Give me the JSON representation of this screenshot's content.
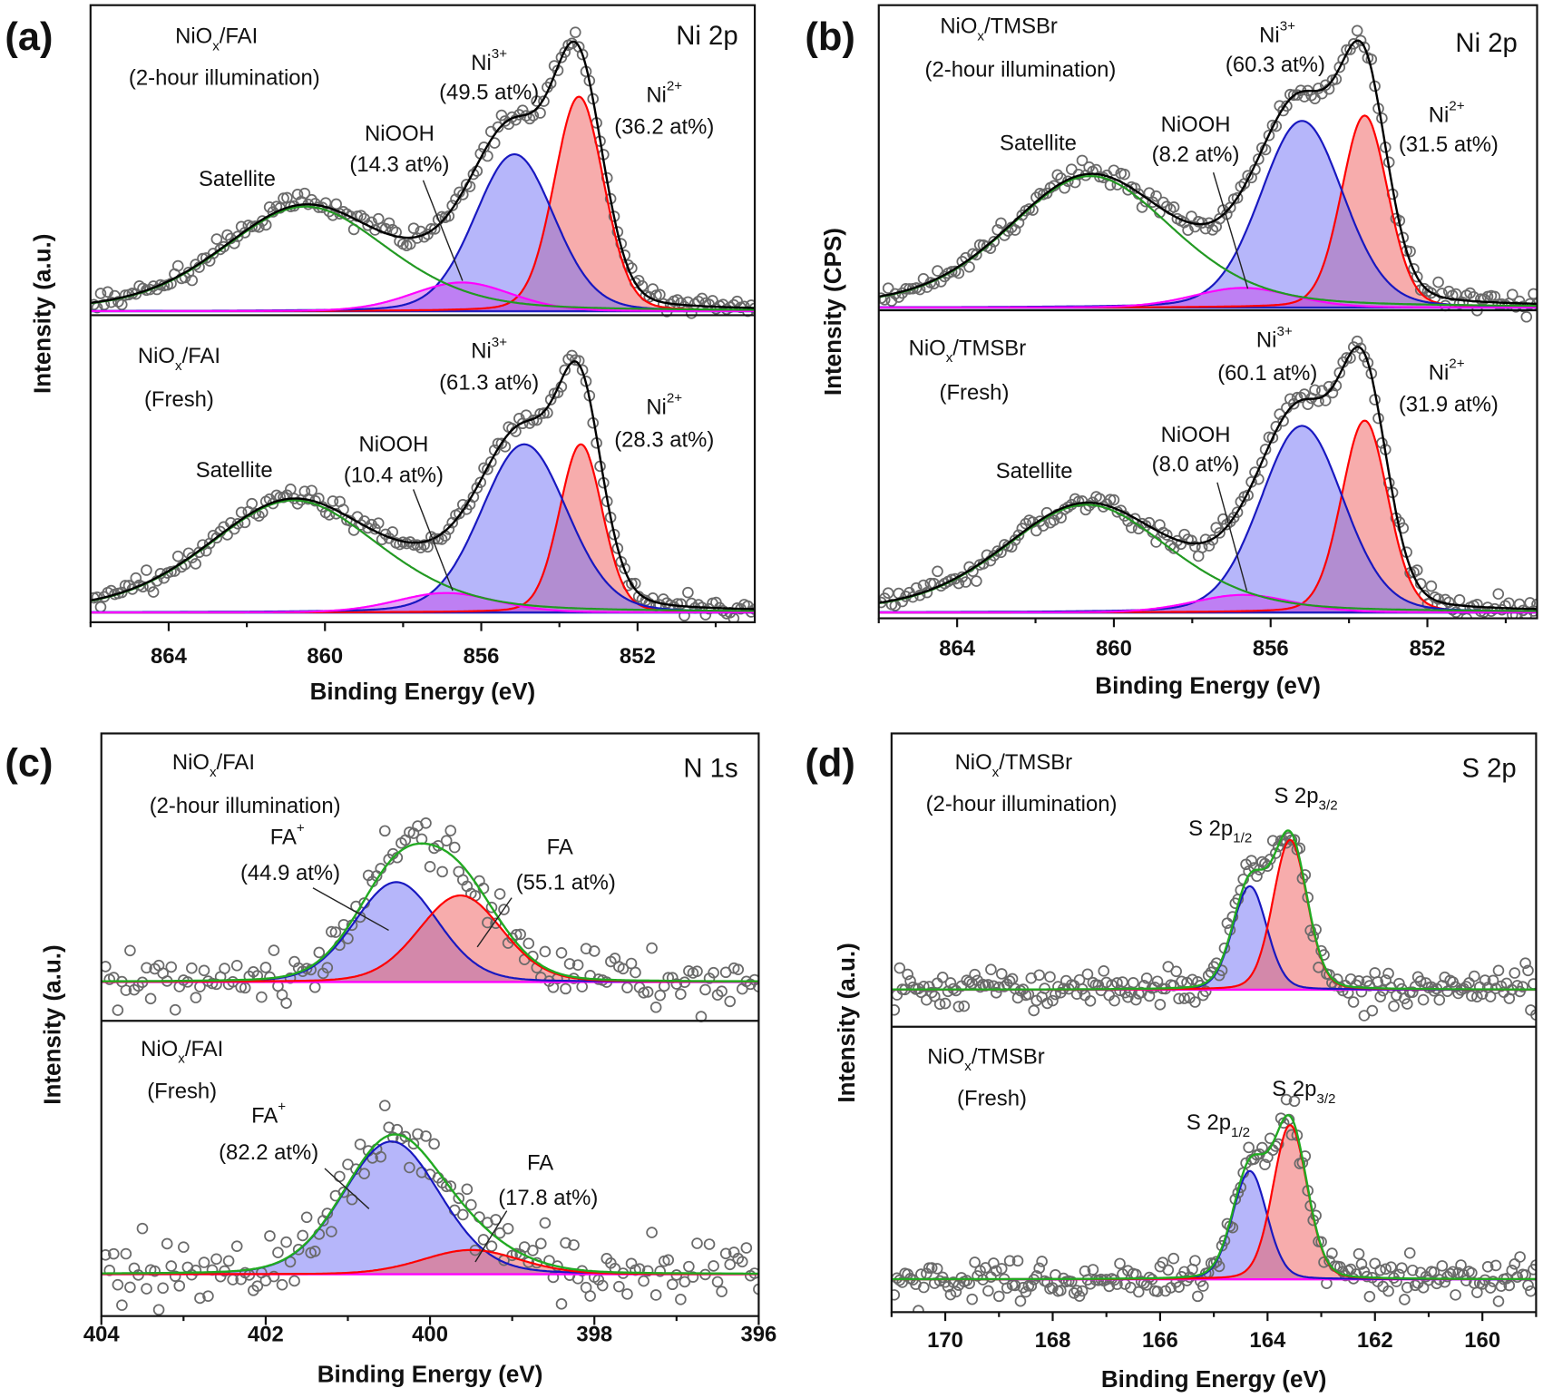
{
  "chart_data": [
    {
      "type": "line",
      "panel": "(a)",
      "element": "Ni 2p",
      "xlabel": "Binding Energy (eV)",
      "ylabel": "Intensity (a.u.)",
      "xlim": [
        866.0,
        849.0
      ],
      "xticks": [
        "864",
        "860",
        "856",
        "852"
      ],
      "envelope_color": "#000000",
      "subplots": [
        {
          "sample": [
            {
              "t": "NiO"
            },
            {
              "t": "x",
              "s": "sub"
            },
            {
              "t": "/FAI"
            }
          ],
          "condition": "(2-hour illumination)",
          "ylim": [
            -0.015,
            1.17
          ],
          "components": [
            {
              "name": [
                {
                  "t": "Ni"
                },
                {
                  "t": "2+",
                  "s": "sup"
                }
              ],
              "at_percent": "(36.2 at%)",
              "center": 853.5,
              "fwhm": 1.5,
              "height": 0.82,
              "color": "#ff0000",
              "fill": "rgba(240,90,90,0.5)"
            },
            {
              "name": [
                {
                  "t": "Ni"
                },
                {
                  "t": "3+",
                  "s": "sup"
                }
              ],
              "at_percent": "(49.5 at%)",
              "center": 855.15,
              "fwhm": 2.4,
              "height": 0.6,
              "color": "#1818c0",
              "fill": "rgba(110,110,245,0.5)"
            },
            {
              "name": [
                {
                  "t": "NiOOH"
                }
              ],
              "at_percent": "(14.3 at%)",
              "center": 856.5,
              "fwhm": 3.0,
              "height": 0.11,
              "color": "#ff00ff",
              "fill": "rgba(200,60,235,0.45)"
            },
            {
              "name": [
                {
                  "t": "Satellite"
                }
              ],
              "center": 860.5,
              "fwhm": 5.0,
              "height": 0.4,
              "color": "#229922",
              "fill": "none"
            }
          ]
        },
        {
          "sample": [
            {
              "t": "NiO"
            },
            {
              "t": "x",
              "s": "sub"
            },
            {
              "t": "/FAI"
            }
          ],
          "condition": "(Fresh)",
          "ylim": [
            -0.04,
            1.22
          ],
          "components": [
            {
              "name": [
                {
                  "t": "Ni"
                },
                {
                  "t": "2+",
                  "s": "sup"
                }
              ],
              "at_percent": "(28.3 at%)",
              "center": 853.45,
              "fwhm": 1.3,
              "height": 0.69,
              "color": "#ff0000",
              "fill": "rgba(240,90,90,0.5)"
            },
            {
              "name": [
                {
                  "t": "Ni"
                },
                {
                  "t": "3+",
                  "s": "sup"
                }
              ],
              "at_percent": "(61.3 at%)",
              "center": 854.9,
              "fwhm": 2.6,
              "height": 0.69,
              "color": "#1818c0",
              "fill": "rgba(110,110,245,0.5)"
            },
            {
              "name": [
                {
                  "t": "NiOOH"
                }
              ],
              "at_percent": "(10.4 at%)",
              "center": 856.9,
              "fwhm": 3.0,
              "height": 0.08,
              "color": "#ff00ff",
              "fill": "rgba(200,60,235,0.45)"
            },
            {
              "name": [
                {
                  "t": "Satellite"
                }
              ],
              "center": 860.8,
              "fwhm": 5.2,
              "height": 0.46,
              "color": "#229922",
              "fill": "none"
            }
          ]
        }
      ]
    },
    {
      "type": "line",
      "panel": "(b)",
      "element": "Ni 2p",
      "xlabel": "Binding Energy (eV)",
      "ylabel": "Intensity (CPS)",
      "xlim": [
        866.0,
        849.2
      ],
      "xticks": [
        "864",
        "860",
        "856",
        "852"
      ],
      "envelope_color": "#000000",
      "subplots": [
        {
          "sample": [
            {
              "t": "NiO"
            },
            {
              "t": "x",
              "s": "sub"
            },
            {
              "t": "/TMSBr"
            }
          ],
          "condition": "(2-hour illumination)",
          "ylim": [
            -0.01,
            1.15
          ],
          "components": [
            {
              "name": [
                {
                  "t": "Ni"
                },
                {
                  "t": "2+",
                  "s": "sup"
                }
              ],
              "at_percent": "(31.5 at%)",
              "center": 853.6,
              "fwhm": 1.4,
              "height": 0.73,
              "color": "#ff0000",
              "fill": "rgba(240,90,90,0.5)"
            },
            {
              "name": [
                {
                  "t": "Ni"
                },
                {
                  "t": "3+",
                  "s": "sup"
                }
              ],
              "at_percent": "(60.3 at%)",
              "center": 855.2,
              "fwhm": 2.5,
              "height": 0.71,
              "color": "#1818c0",
              "fill": "rgba(110,110,245,0.5)"
            },
            {
              "name": [
                {
                  "t": "NiOOH"
                }
              ],
              "at_percent": "(8.2 at%)",
              "center": 856.7,
              "fwhm": 3.0,
              "height": 0.075,
              "color": "#ff00ff",
              "fill": "rgba(200,60,235,0.45)"
            },
            {
              "name": [
                {
                  "t": "Satellite"
                }
              ],
              "center": 860.6,
              "fwhm": 5.0,
              "height": 0.5,
              "color": "#229922",
              "fill": "none"
            }
          ]
        },
        {
          "sample": [
            {
              "t": "NiO"
            },
            {
              "t": "x",
              "s": "sub"
            },
            {
              "t": "/TMSBr"
            }
          ],
          "condition": "(Fresh)",
          "ylim": [
            -0.022,
            1.15
          ],
          "components": [
            {
              "name": [
                {
                  "t": "Ni"
                },
                {
                  "t": "2+",
                  "s": "sup"
                }
              ],
              "at_percent": "(31.9 at%)",
              "center": 853.6,
              "fwhm": 1.4,
              "height": 0.73,
              "color": "#ff0000",
              "fill": "rgba(240,90,90,0.5)"
            },
            {
              "name": [
                {
                  "t": "Ni"
                },
                {
                  "t": "3+",
                  "s": "sup"
                }
              ],
              "at_percent": "(60.1 at%)",
              "center": 855.2,
              "fwhm": 2.5,
              "height": 0.71,
              "color": "#1818c0",
              "fill": "rgba(110,110,245,0.5)"
            },
            {
              "name": [
                {
                  "t": "NiOOH"
                }
              ],
              "at_percent": "(8.0 at%)",
              "center": 856.7,
              "fwhm": 3.0,
              "height": 0.067,
              "color": "#ff00ff",
              "fill": "rgba(200,60,235,0.45)"
            },
            {
              "name": [
                {
                  "t": "Satellite"
                }
              ],
              "center": 860.7,
              "fwhm": 5.0,
              "height": 0.41,
              "color": "#229922",
              "fill": "none"
            }
          ]
        }
      ]
    },
    {
      "type": "line",
      "panel": "(c)",
      "element": "N 1s",
      "xlabel": "Binding Energy (eV)",
      "ylabel": "Intensity (a.u.)",
      "xlim": [
        404,
        396
      ],
      "xticks": [
        "404",
        "402",
        "400",
        "398",
        "396"
      ],
      "envelope_color": "#22aa22",
      "baseline_color": "#ff00ff",
      "subplots": [
        {
          "sample": [
            {
              "t": "NiO"
            },
            {
              "t": "x",
              "s": "sub"
            },
            {
              "t": "/FAI"
            }
          ],
          "condition": "(2-hour illumination)",
          "ylim": [
            -0.35,
            2.24
          ],
          "components": [
            {
              "name": [
                {
                  "t": "FA"
                },
                {
                  "t": "+",
                  "s": "sup"
                }
              ],
              "at_percent": "(44.9 at%)",
              "center": 400.41,
              "fwhm": 1.2,
              "height": 0.9,
              "color": "#1818c0",
              "fill": "rgba(110,110,245,0.5)"
            },
            {
              "name": [
                {
                  "t": "FA"
                }
              ],
              "at_percent": "(55.1 at%)",
              "center": 399.63,
              "fwhm": 1.2,
              "height": 0.78,
              "color": "#ff0000",
              "fill": "rgba(240,90,90,0.5)"
            }
          ]
        },
        {
          "sample": [
            {
              "t": "NiO"
            },
            {
              "t": "x",
              "s": "sub"
            },
            {
              "t": "/FAI"
            }
          ],
          "condition": "(Fresh)",
          "ylim": [
            -0.31,
            1.88
          ],
          "components": [
            {
              "name": [
                {
                  "t": "FA"
                },
                {
                  "t": "+",
                  "s": "sup"
                }
              ],
              "at_percent": "(82.2 at%)",
              "center": 400.47,
              "fwhm": 1.4,
              "height": 0.985,
              "color": "#1818c0",
              "fill": "rgba(110,110,245,0.5)"
            },
            {
              "name": [
                {
                  "t": "FA"
                }
              ],
              "at_percent": "(17.8 at%)",
              "center": 399.5,
              "fwhm": 1.4,
              "height": 0.18,
              "color": "#ff0000",
              "fill": "rgba(240,90,90,0.5)"
            }
          ]
        }
      ]
    },
    {
      "type": "line",
      "panel": "(d)",
      "element": "S 2p",
      "xlabel": "Binding Energy (eV)",
      "ylabel": "Intensity (a.u.)",
      "xlim": [
        171,
        159
      ],
      "xticks": [
        "170",
        "168",
        "166",
        "164",
        "162",
        "160"
      ],
      "envelope_color": "#22aa22",
      "baseline_color": "#ff00ff",
      "subplots": [
        {
          "sample": [
            {
              "t": "NiO"
            },
            {
              "t": "x",
              "s": "sub"
            },
            {
              "t": "/TMSBr"
            }
          ],
          "condition": "(2-hour illumination)",
          "ylim": [
            -0.24,
            1.66
          ],
          "components": [
            {
              "name": [
                {
                  "t": "S 2p"
                },
                {
                  "t": "1/2",
                  "s": "sub"
                }
              ],
              "center": 164.33,
              "fwhm": 0.75,
              "height": 0.67,
              "color": "#1818c0",
              "fill": "rgba(110,110,245,0.5)"
            },
            {
              "name": [
                {
                  "t": "S 2p"
                },
                {
                  "t": "3/2",
                  "s": "sub"
                }
              ],
              "center": 163.58,
              "fwhm": 0.75,
              "height": 0.97,
              "color": "#ff0000",
              "fill": "rgba(240,90,90,0.5)"
            }
          ]
        },
        {
          "sample": [
            {
              "t": "NiO"
            },
            {
              "t": "x",
              "s": "sub"
            },
            {
              "t": "/TMSBr"
            }
          ],
          "condition": "(Fresh)",
          "ylim": [
            -0.2,
            1.54
          ],
          "components": [
            {
              "name": [
                {
                  "t": "S 2p"
                },
                {
                  "t": "1/2",
                  "s": "sub"
                }
              ],
              "center": 164.33,
              "fwhm": 0.75,
              "height": 0.66,
              "color": "#1818c0",
              "fill": "rgba(110,110,245,0.5)"
            },
            {
              "name": [
                {
                  "t": "S 2p"
                },
                {
                  "t": "3/2",
                  "s": "sub"
                }
              ],
              "center": 163.58,
              "fwhm": 0.75,
              "height": 0.94,
              "color": "#ff0000",
              "fill": "rgba(240,90,90,0.5)"
            }
          ]
        }
      ]
    }
  ]
}
